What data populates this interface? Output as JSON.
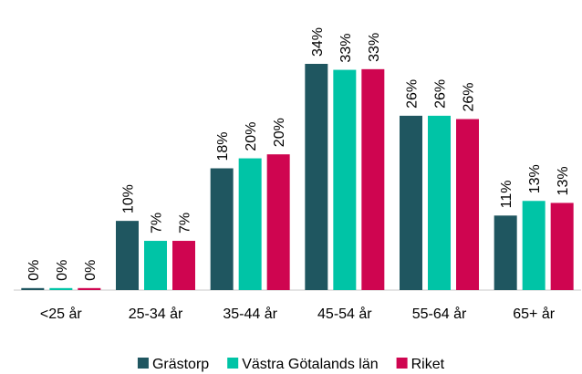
{
  "chart_data": {
    "type": "bar",
    "categories": [
      "<25 år",
      "25-34 år",
      "35-44 år",
      "45-54 år",
      "55-64 år",
      "65+ år"
    ],
    "series": [
      {
        "name": "Grästorp",
        "color": "#1f5660",
        "values": [
          0.3,
          10.4,
          18.3,
          34,
          26.2,
          11.2
        ],
        "value_labels": [
          "0%",
          "10%",
          "18%",
          "34%",
          "26%",
          "11%"
        ]
      },
      {
        "name": "Västra Götalands län",
        "color": "#00c4a6",
        "values": [
          0.3,
          7.4,
          19.8,
          33.1,
          26.2,
          13.4
        ],
        "value_labels": [
          "0%",
          "7%",
          "20%",
          "33%",
          "26%",
          "13%"
        ]
      },
      {
        "name": "Riket",
        "color": "#cf0550",
        "values": [
          0.3,
          7.4,
          20.4,
          33.2,
          25.7,
          13.1
        ],
        "value_labels": [
          "0%",
          "7%",
          "20%",
          "33%",
          "26%",
          "13%"
        ]
      }
    ],
    "legend": "bottom"
  }
}
